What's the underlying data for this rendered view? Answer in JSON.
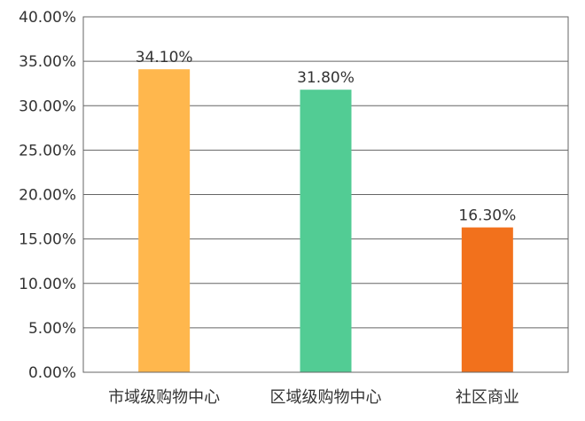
{
  "chart_data": {
    "type": "bar",
    "categories": [
      "市域级购物中心",
      "区域级购物中心",
      "社区商业"
    ],
    "values": [
      34.1,
      31.8,
      16.3
    ],
    "value_labels": [
      "34.10%",
      "31.80%",
      "16.30%"
    ],
    "bar_colors": [
      "#FFB74D",
      "#52CC94",
      "#F2711C"
    ],
    "ylim": [
      0,
      40
    ],
    "yticks": [
      0,
      5,
      10,
      15,
      20,
      25,
      30,
      35,
      40
    ],
    "ytick_labels": [
      "0.00%",
      "5.00%",
      "10.00%",
      "15.00%",
      "20.00%",
      "25.00%",
      "30.00%",
      "35.00%",
      "40.00%"
    ],
    "title": "",
    "xlabel": "",
    "ylabel": "",
    "grid": true,
    "legend": "none"
  }
}
